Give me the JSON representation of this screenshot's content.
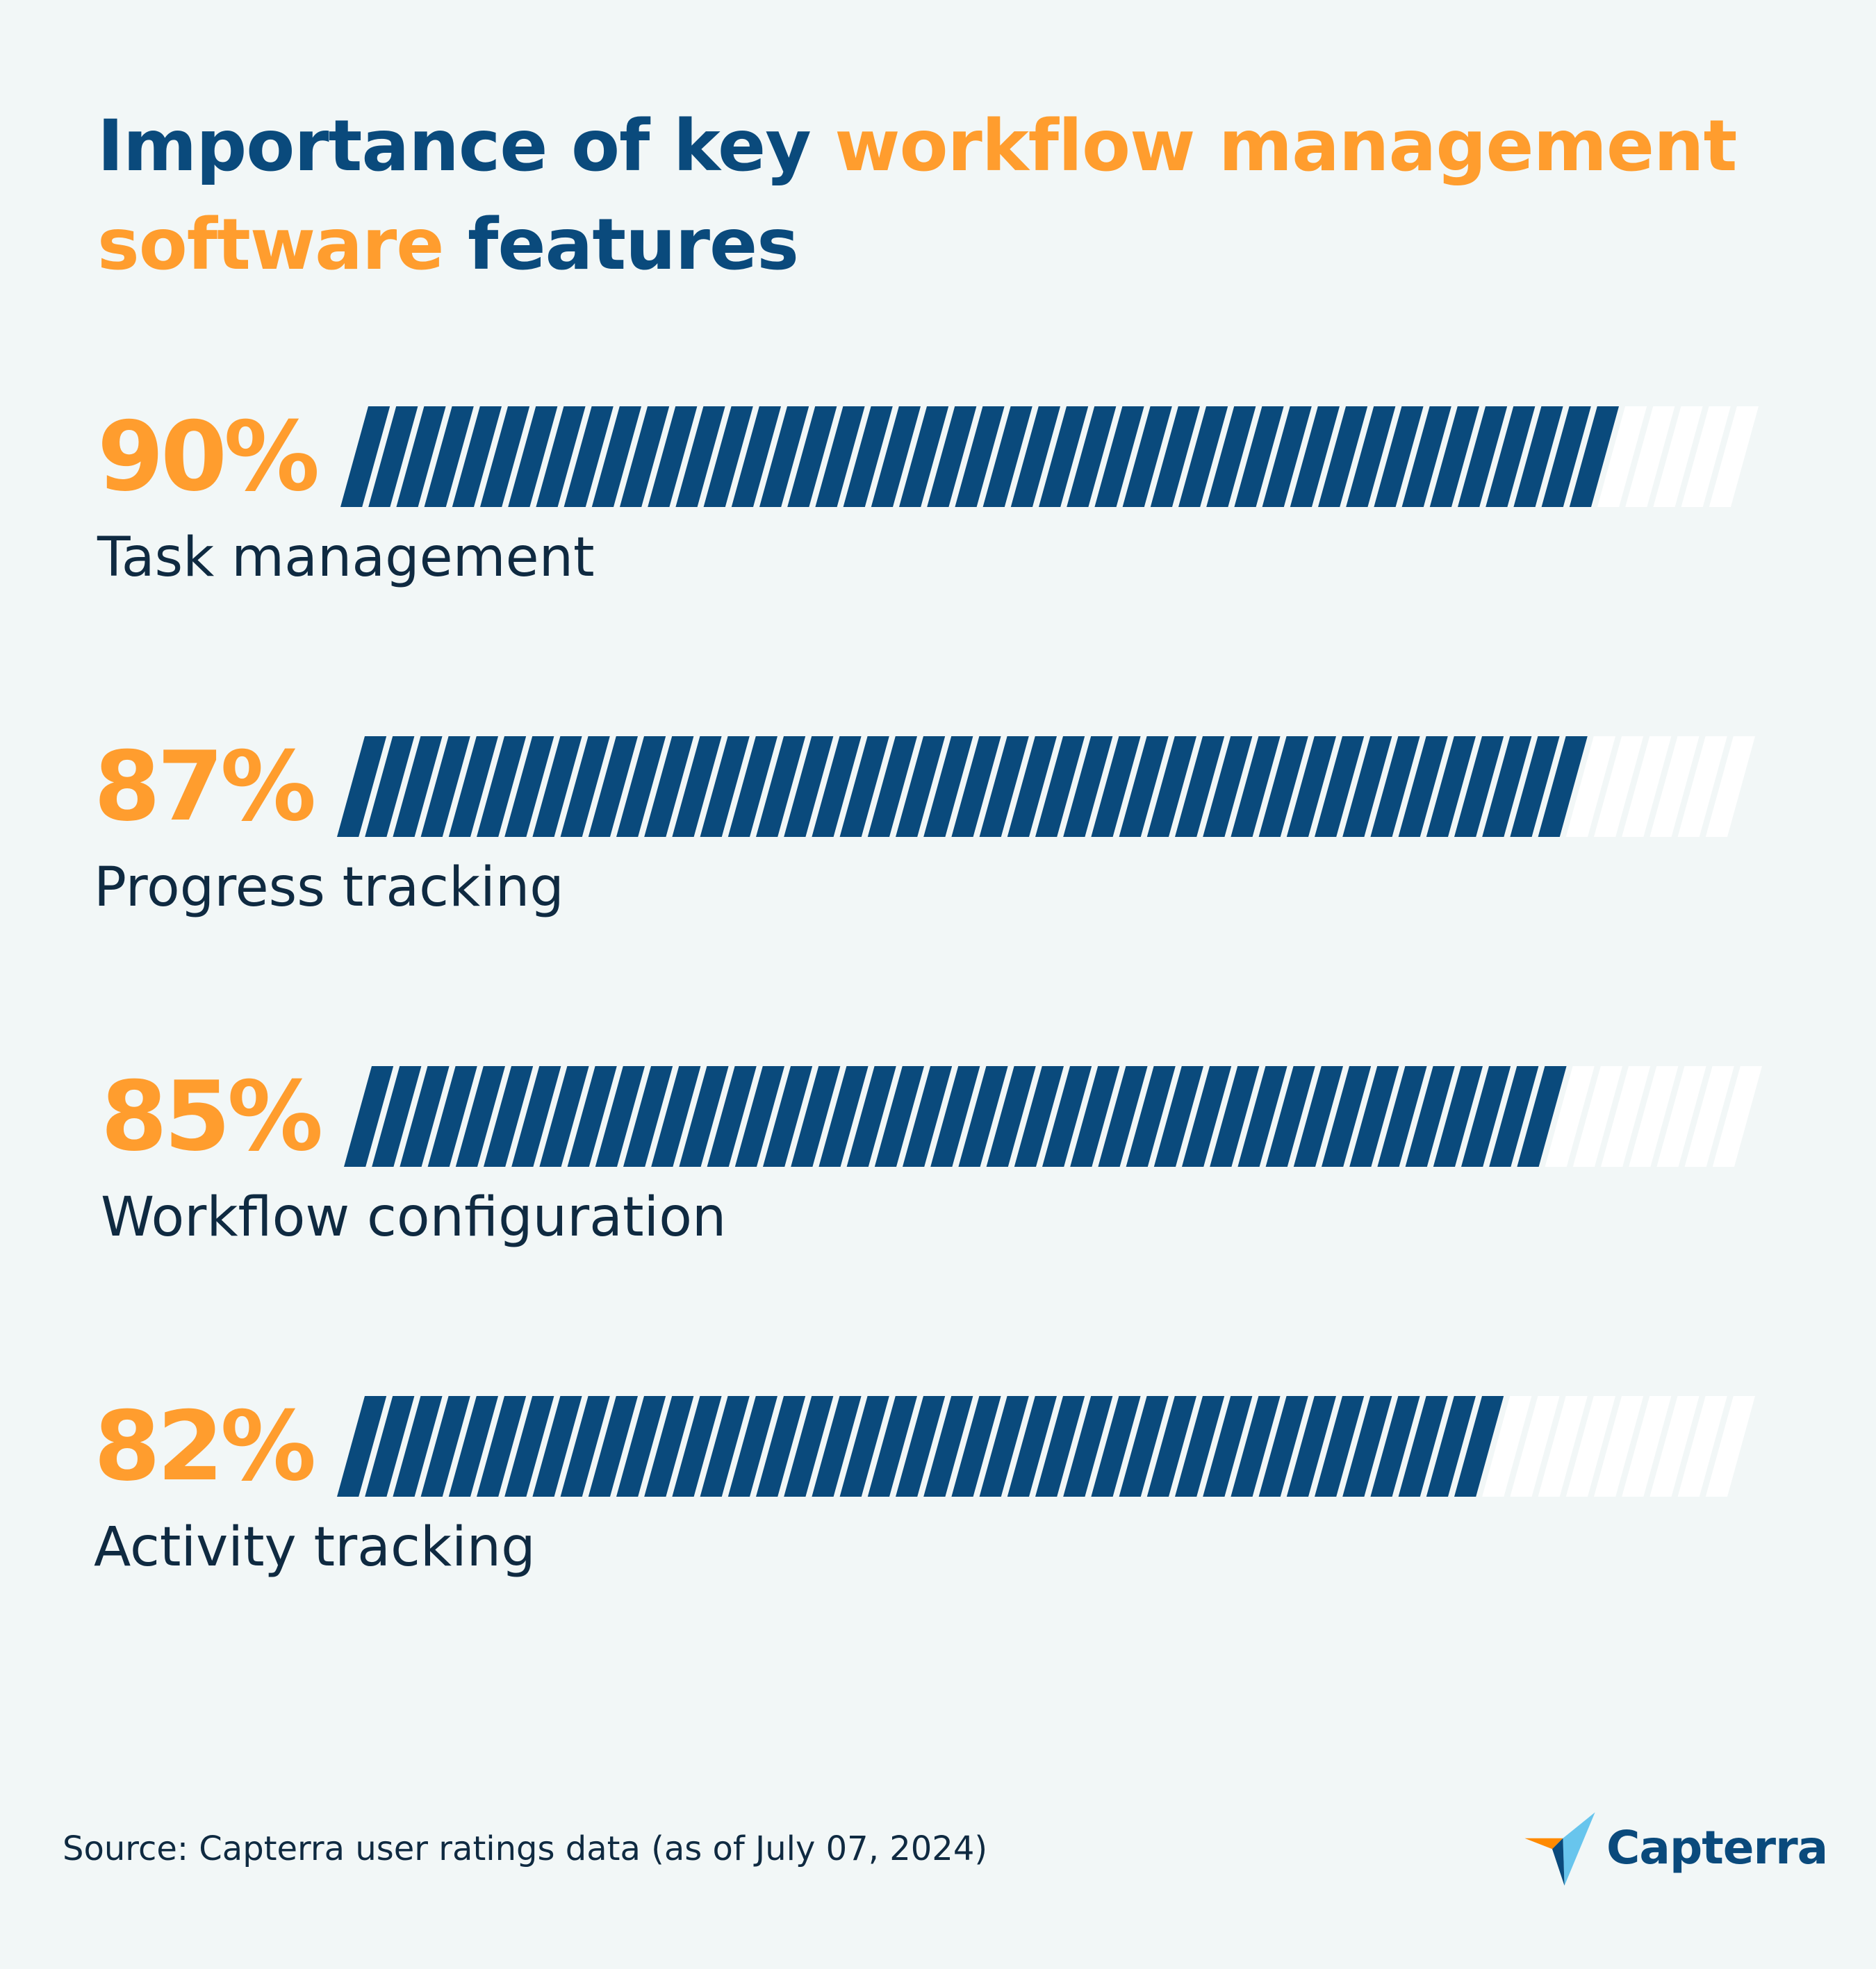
{
  "title": {
    "part1": "Importance of key ",
    "highlight": "workflow management software",
    "part2": " features"
  },
  "chart_data": {
    "type": "bar",
    "orientation": "horizontal",
    "unit": "%",
    "xlim": [
      0,
      100
    ],
    "categories": [
      "Task management",
      "Progress tracking",
      "Workflow configuration",
      "Activity tracking"
    ],
    "values": [
      90,
      87,
      85,
      82
    ],
    "value_labels": [
      "90%",
      "87%",
      "85%",
      "82%"
    ],
    "grid": false
  },
  "source": "Source: Capterra user ratings data (as of July 07, 2024)",
  "logo": {
    "text": "Capterra",
    "icon": "capterra-arrow-icon"
  },
  "colors": {
    "background": "#f2f7f7",
    "bar_fill": "#0a4a7c",
    "bar_empty": "#ffffff",
    "accent": "#ff9d2e",
    "title": "#0a4a7c",
    "text": "#0f2a41"
  }
}
